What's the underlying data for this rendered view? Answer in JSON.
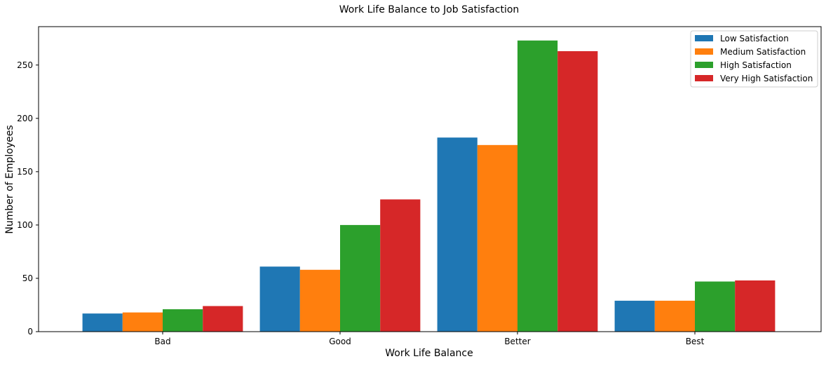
{
  "chart_data": {
    "type": "bar",
    "title": "Work Life Balance to Job Satisfaction",
    "xlabel": "Work Life Balance",
    "ylabel": "Number of Employees",
    "categories": [
      "Bad",
      "Good",
      "Better",
      "Best"
    ],
    "series": [
      {
        "name": "Low Satisfaction",
        "values": [
          17,
          61,
          182,
          29
        ],
        "color": "#1f77b4"
      },
      {
        "name": "Medium Satisfaction",
        "values": [
          18,
          58,
          175,
          29
        ],
        "color": "#ff7f0e"
      },
      {
        "name": "High Satisfaction",
        "values": [
          21,
          100,
          273,
          47
        ],
        "color": "#2ca02c"
      },
      {
        "name": "Very High Satisfaction",
        "values": [
          24,
          124,
          263,
          48
        ],
        "color": "#d62728"
      }
    ],
    "ylim": [
      0,
      286
    ],
    "yticks": [
      0,
      50,
      100,
      150,
      200,
      250
    ],
    "grid": false,
    "legend_position": "top-right"
  }
}
